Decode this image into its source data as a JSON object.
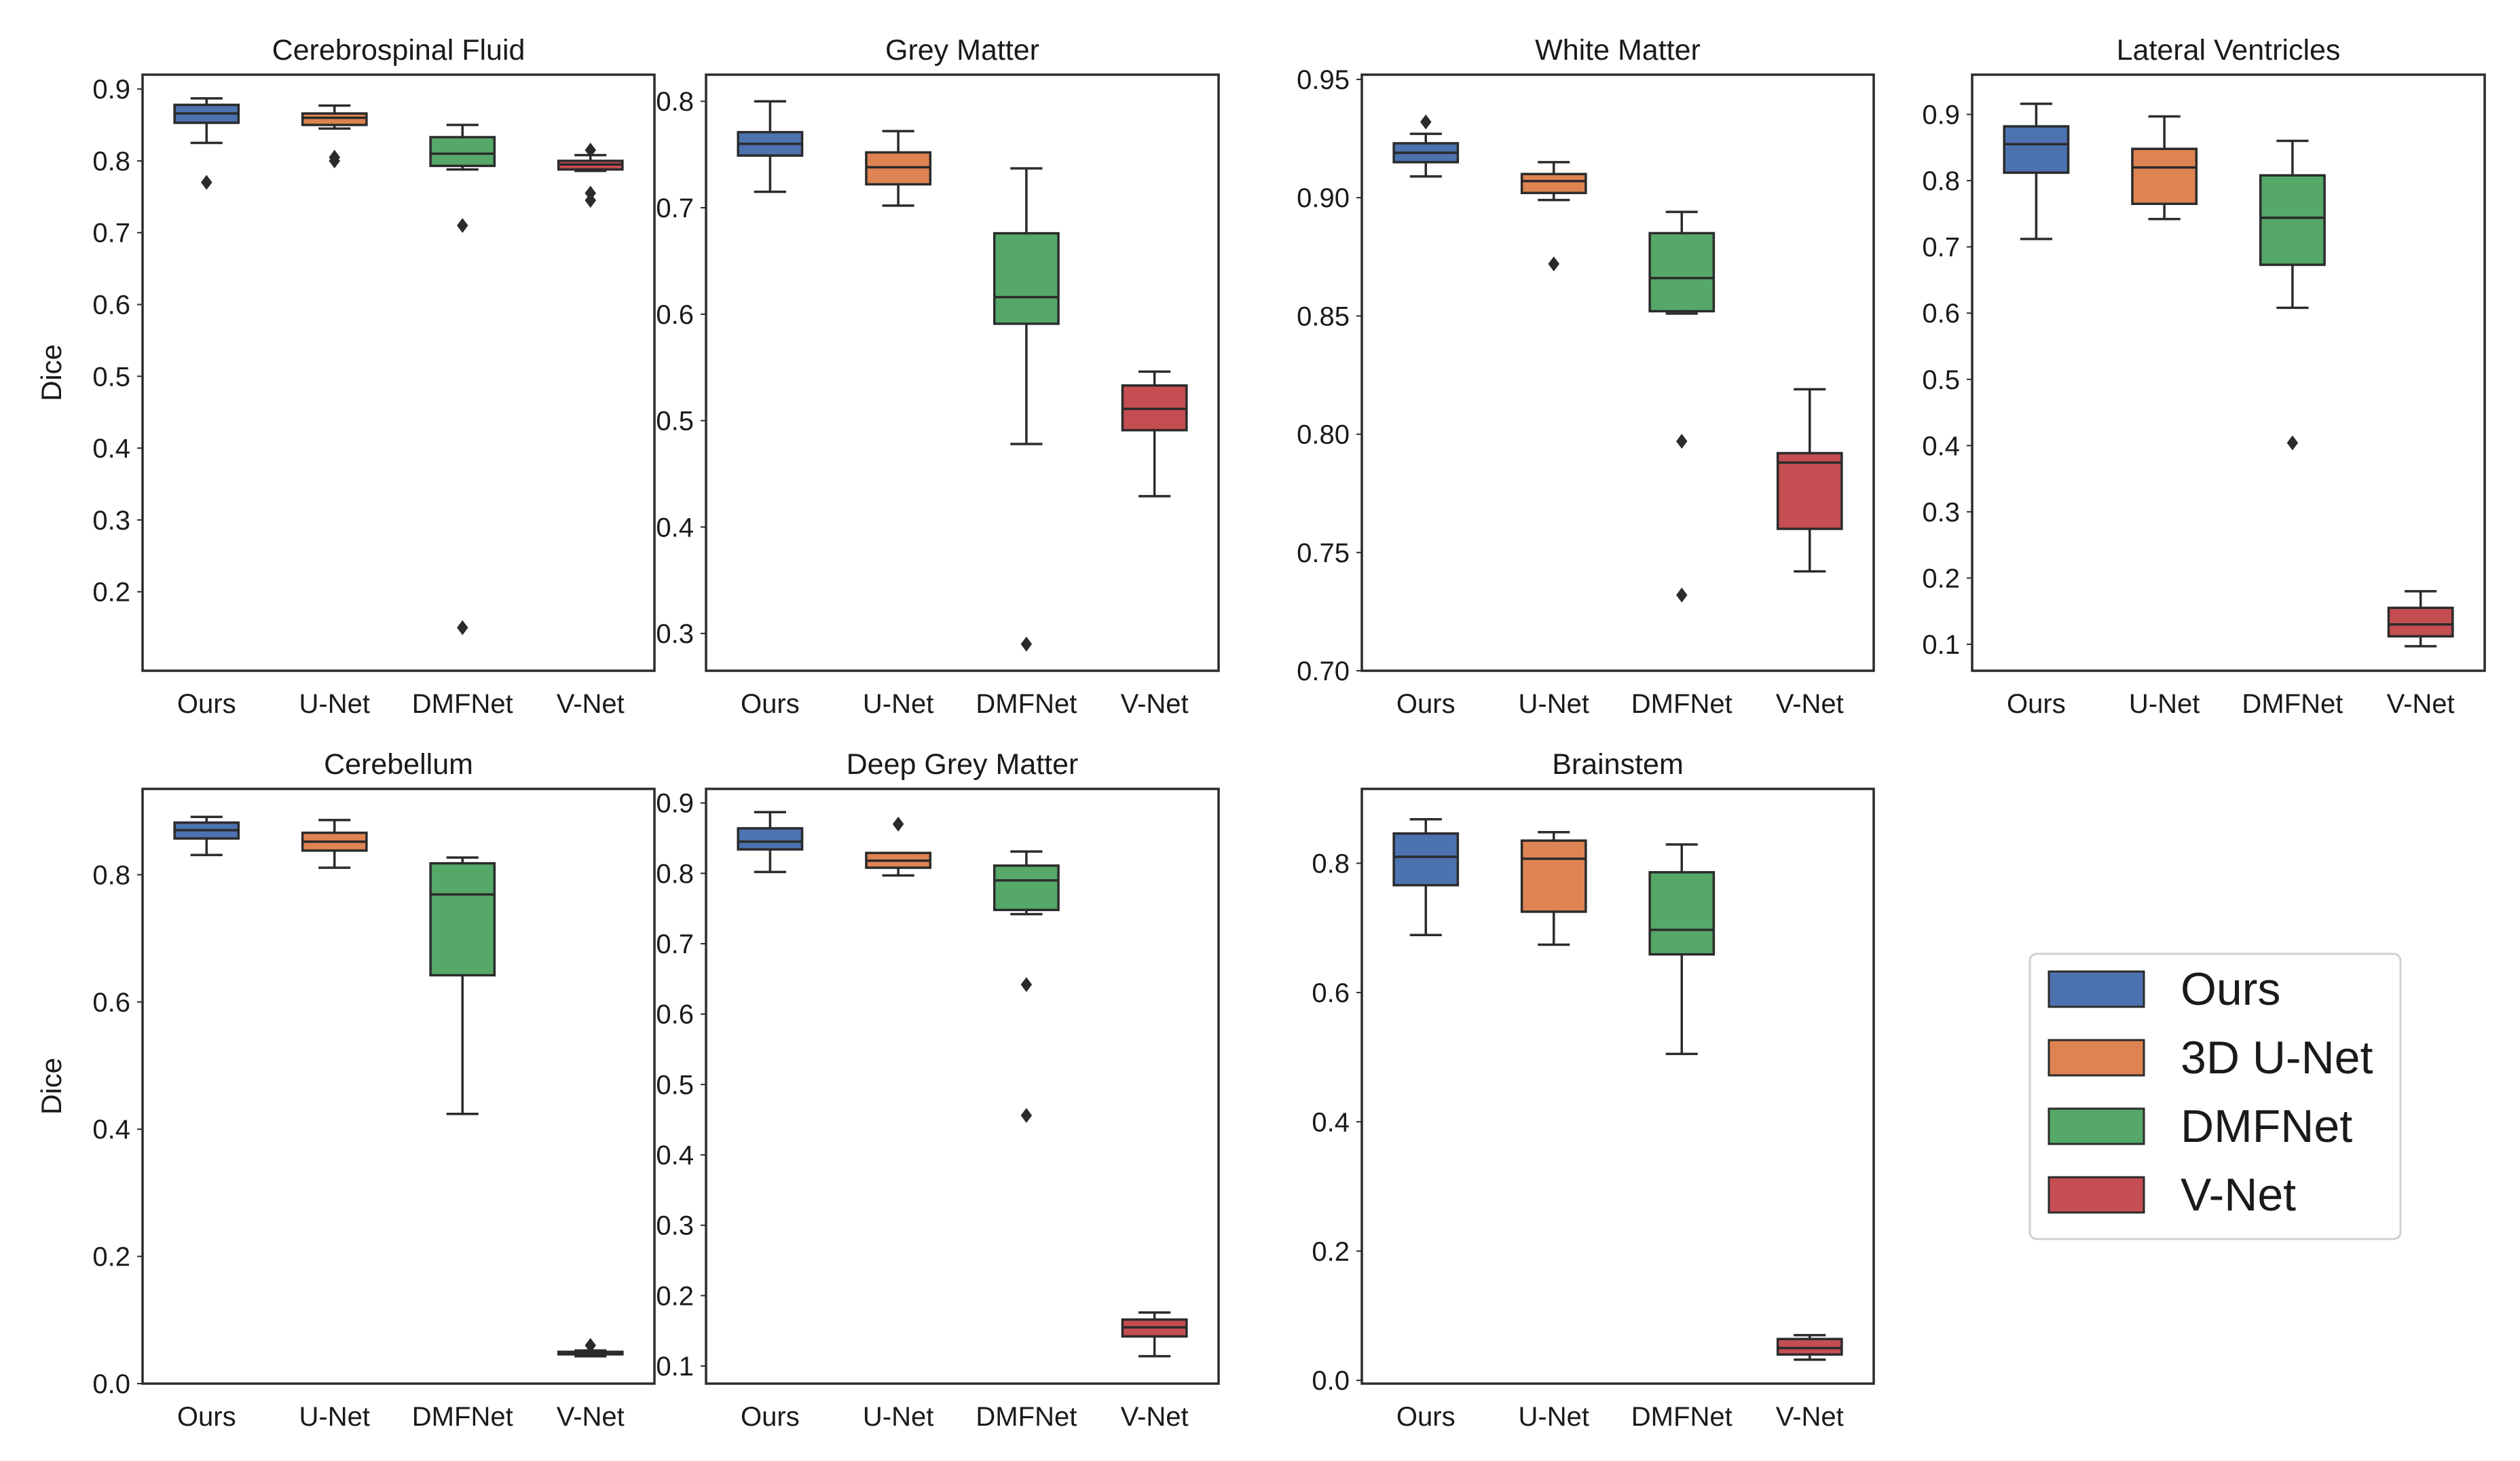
{
  "figure": {
    "ylabel": "Dice",
    "colors": {
      "Ours": "#4c72b0",
      "U-Net": "#dd8452",
      "DMFNet": "#55a868",
      "V-Net": "#c44e52",
      "line": "#2b2b2b"
    }
  },
  "legend": {
    "items": [
      {
        "label": "Ours",
        "key": "Ours"
      },
      {
        "label": "3D U-Net",
        "key": "U-Net"
      },
      {
        "label": "DMFNet",
        "key": "DMFNet"
      },
      {
        "label": "V-Net",
        "key": "V-Net"
      }
    ]
  },
  "chart_data": [
    {
      "type": "box",
      "title": "Cerebrospinal Fluid",
      "ylabel": "Dice",
      "ylim": [
        0.09,
        0.92
      ],
      "yticks": [
        0.2,
        0.3,
        0.4,
        0.5,
        0.6,
        0.7,
        0.8,
        0.9
      ],
      "ytick_labels": [
        "0.2",
        "0.3",
        "0.4",
        "0.5",
        "0.6",
        "0.7",
        "0.8",
        "0.9"
      ],
      "categories": [
        "Ours",
        "U-Net",
        "DMFNet",
        "V-Net"
      ],
      "boxes": [
        {
          "name": "Ours",
          "whislo": 0.825,
          "q1": 0.853,
          "med": 0.866,
          "q3": 0.878,
          "whishi": 0.887,
          "fliers": [
            0.77
          ]
        },
        {
          "name": "U-Net",
          "whislo": 0.845,
          "q1": 0.85,
          "med": 0.86,
          "q3": 0.866,
          "whishi": 0.877,
          "fliers": [
            0.8,
            0.805
          ]
        },
        {
          "name": "DMFNet",
          "whislo": 0.788,
          "q1": 0.793,
          "med": 0.81,
          "q3": 0.833,
          "whishi": 0.85,
          "fliers": [
            0.71,
            0.15
          ]
        },
        {
          "name": "V-Net",
          "whislo": 0.786,
          "q1": 0.788,
          "med": 0.795,
          "q3": 0.8,
          "whishi": 0.808,
          "fliers": [
            0.815,
            0.755,
            0.745
          ]
        }
      ]
    },
    {
      "type": "box",
      "title": "Grey Matter",
      "ylabel": "",
      "ylim": [
        0.265,
        0.825
      ],
      "yticks": [
        0.3,
        0.4,
        0.5,
        0.6,
        0.7,
        0.8
      ],
      "ytick_labels": [
        "0.3",
        "0.4",
        "0.5",
        "0.6",
        "0.7",
        "0.8"
      ],
      "categories": [
        "Ours",
        "U-Net",
        "DMFNet",
        "V-Net"
      ],
      "boxes": [
        {
          "name": "Ours",
          "whislo": 0.715,
          "q1": 0.749,
          "med": 0.76,
          "q3": 0.771,
          "whishi": 0.8,
          "fliers": []
        },
        {
          "name": "U-Net",
          "whislo": 0.702,
          "q1": 0.722,
          "med": 0.738,
          "q3": 0.752,
          "whishi": 0.772,
          "fliers": []
        },
        {
          "name": "DMFNet",
          "whislo": 0.478,
          "q1": 0.591,
          "med": 0.616,
          "q3": 0.676,
          "whishi": 0.737,
          "fliers": [
            0.29
          ]
        },
        {
          "name": "V-Net",
          "whislo": 0.429,
          "q1": 0.491,
          "med": 0.511,
          "q3": 0.533,
          "whishi": 0.546,
          "fliers": []
        }
      ]
    },
    {
      "type": "box",
      "title": "White Matter",
      "ylabel": "",
      "ylim": [
        0.7,
        0.952
      ],
      "yticks": [
        0.7,
        0.75,
        0.8,
        0.85,
        0.9,
        0.95
      ],
      "ytick_labels": [
        "0.70",
        "0.75",
        "0.80",
        "0.85",
        "0.90",
        "0.95"
      ],
      "categories": [
        "Ours",
        "U-Net",
        "DMFNet",
        "V-Net"
      ],
      "boxes": [
        {
          "name": "Ours",
          "whislo": 0.909,
          "q1": 0.915,
          "med": 0.919,
          "q3": 0.923,
          "whishi": 0.927,
          "fliers": [
            0.932
          ]
        },
        {
          "name": "U-Net",
          "whislo": 0.899,
          "q1": 0.902,
          "med": 0.907,
          "q3": 0.91,
          "whishi": 0.915,
          "fliers": [
            0.872
          ]
        },
        {
          "name": "DMFNet",
          "whislo": 0.851,
          "q1": 0.852,
          "med": 0.866,
          "q3": 0.885,
          "whishi": 0.894,
          "fliers": [
            0.797,
            0.732
          ]
        },
        {
          "name": "V-Net",
          "whislo": 0.742,
          "q1": 0.76,
          "med": 0.788,
          "q3": 0.792,
          "whishi": 0.819,
          "fliers": []
        }
      ]
    },
    {
      "type": "box",
      "title": "Lateral Ventricles",
      "ylabel": "",
      "ylim": [
        0.06,
        0.96
      ],
      "yticks": [
        0.1,
        0.2,
        0.3,
        0.4,
        0.5,
        0.6,
        0.7,
        0.8,
        0.9
      ],
      "ytick_labels": [
        "0.1",
        "0.2",
        "0.3",
        "0.4",
        "0.5",
        "0.6",
        "0.7",
        "0.8",
        "0.9"
      ],
      "categories": [
        "Ours",
        "U-Net",
        "DMFNet",
        "V-Net"
      ],
      "boxes": [
        {
          "name": "Ours",
          "whislo": 0.712,
          "q1": 0.812,
          "med": 0.855,
          "q3": 0.882,
          "whishi": 0.916,
          "fliers": []
        },
        {
          "name": "U-Net",
          "whislo": 0.742,
          "q1": 0.765,
          "med": 0.82,
          "q3": 0.848,
          "whishi": 0.897,
          "fliers": []
        },
        {
          "name": "DMFNet",
          "whislo": 0.608,
          "q1": 0.673,
          "med": 0.744,
          "q3": 0.808,
          "whishi": 0.86,
          "fliers": [
            0.404
          ]
        },
        {
          "name": "V-Net",
          "whislo": 0.097,
          "q1": 0.112,
          "med": 0.13,
          "q3": 0.155,
          "whishi": 0.18,
          "fliers": []
        }
      ]
    },
    {
      "type": "box",
      "title": "Cerebellum",
      "ylabel": "Dice",
      "ylim": [
        0.0,
        0.935
      ],
      "yticks": [
        0.0,
        0.2,
        0.4,
        0.6,
        0.8
      ],
      "ytick_labels": [
        "0.0",
        "0.2",
        "0.4",
        "0.6",
        "0.8"
      ],
      "categories": [
        "Ours",
        "U-Net",
        "DMFNet",
        "V-Net"
      ],
      "boxes": [
        {
          "name": "Ours",
          "whislo": 0.831,
          "q1": 0.857,
          "med": 0.87,
          "q3": 0.882,
          "whishi": 0.891,
          "fliers": []
        },
        {
          "name": "U-Net",
          "whislo": 0.811,
          "q1": 0.838,
          "med": 0.852,
          "q3": 0.866,
          "whishi": 0.886,
          "fliers": []
        },
        {
          "name": "DMFNet",
          "whislo": 0.424,
          "q1": 0.642,
          "med": 0.769,
          "q3": 0.818,
          "whishi": 0.827,
          "fliers": []
        },
        {
          "name": "V-Net",
          "whislo": 0.043,
          "q1": 0.046,
          "med": 0.048,
          "q3": 0.05,
          "whishi": 0.052,
          "fliers": [
            0.06
          ]
        }
      ]
    },
    {
      "type": "box",
      "title": "Deep Grey Matter",
      "ylabel": "",
      "ylim": [
        0.075,
        0.92
      ],
      "yticks": [
        0.1,
        0.2,
        0.3,
        0.4,
        0.5,
        0.6,
        0.7,
        0.8,
        0.9
      ],
      "ytick_labels": [
        "0.1",
        "0.2",
        "0.3",
        "0.4",
        "0.5",
        "0.6",
        "0.7",
        "0.8",
        "0.9"
      ],
      "categories": [
        "Ours",
        "U-Net",
        "DMFNet",
        "V-Net"
      ],
      "boxes": [
        {
          "name": "Ours",
          "whislo": 0.802,
          "q1": 0.834,
          "med": 0.845,
          "q3": 0.864,
          "whishi": 0.887,
          "fliers": []
        },
        {
          "name": "U-Net",
          "whislo": 0.797,
          "q1": 0.808,
          "med": 0.818,
          "q3": 0.829,
          "whishi": 0.829,
          "fliers": [
            0.87
          ]
        },
        {
          "name": "DMFNet",
          "whislo": 0.742,
          "q1": 0.748,
          "med": 0.79,
          "q3": 0.811,
          "whishi": 0.831,
          "fliers": [
            0.642,
            0.456
          ]
        },
        {
          "name": "V-Net",
          "whislo": 0.114,
          "q1": 0.142,
          "med": 0.155,
          "q3": 0.166,
          "whishi": 0.176,
          "fliers": []
        }
      ]
    },
    {
      "type": "box",
      "title": "Brainstem",
      "ylabel": "",
      "ylim": [
        -0.005,
        0.915
      ],
      "yticks": [
        0.0,
        0.2,
        0.4,
        0.6,
        0.8
      ],
      "ytick_labels": [
        "0.0",
        "0.2",
        "0.4",
        "0.6",
        "0.8"
      ],
      "categories": [
        "Ours",
        "U-Net",
        "DMFNet",
        "V-Net"
      ],
      "boxes": [
        {
          "name": "Ours",
          "whislo": 0.689,
          "q1": 0.766,
          "med": 0.81,
          "q3": 0.846,
          "whishi": 0.868,
          "fliers": []
        },
        {
          "name": "U-Net",
          "whislo": 0.674,
          "q1": 0.725,
          "med": 0.807,
          "q3": 0.835,
          "whishi": 0.848,
          "fliers": []
        },
        {
          "name": "DMFNet",
          "whislo": 0.505,
          "q1": 0.659,
          "med": 0.697,
          "q3": 0.786,
          "whishi": 0.829,
          "fliers": []
        },
        {
          "name": "V-Net",
          "whislo": 0.032,
          "q1": 0.04,
          "med": 0.05,
          "q3": 0.064,
          "whishi": 0.07,
          "fliers": []
        }
      ]
    }
  ]
}
